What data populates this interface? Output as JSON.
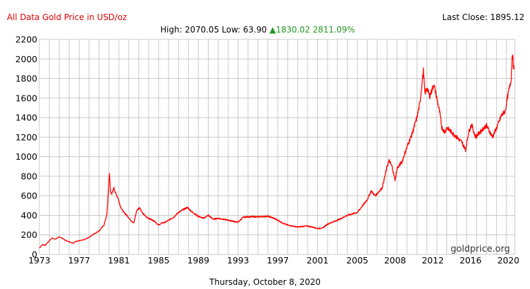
{
  "header": {
    "title": "All Data Gold Price in USD/oz",
    "last_close_label": "Last Close:",
    "last_close_value": "1895.12",
    "high_label": "High:",
    "high_value": "2070.05",
    "low_label": "Low:",
    "low_value": "63.90",
    "change_arrow": "▲",
    "change_value": "1830.02",
    "change_percent": "2811.09%"
  },
  "footer": {
    "date": "Thursday, October 8, 2020",
    "watermark": "goldprice.org"
  },
  "colors": {
    "title": "#dd0000",
    "line": "#ff0000",
    "change": "#229922",
    "grid": "#c8c8c8"
  },
  "chart_data": {
    "type": "line",
    "title": "All Data Gold Price in USD/oz",
    "xlabel": "",
    "ylabel": "",
    "ylim": [
      0,
      2200
    ],
    "xlim": [
      1973.0,
      2020.85
    ],
    "grid": true,
    "x_ticks": [
      "1973",
      "1977",
      "1981",
      "1985",
      "1989",
      "1993",
      "1997",
      "2001",
      "2005",
      "2008",
      "2012",
      "2016",
      "2020"
    ],
    "x_tick_values": [
      1973,
      1977,
      1981,
      1985,
      1989,
      1993,
      1997,
      2001,
      2005,
      2008.8,
      2012.6,
      2016.4,
      2020.2
    ],
    "y_ticks": [
      0,
      200,
      400,
      600,
      800,
      1000,
      1200,
      1400,
      1600,
      1800,
      2000,
      2200
    ],
    "series": [
      {
        "name": "",
        "x": [
          1973.0,
          1973.3,
          1973.6,
          1974.0,
          1974.3,
          1974.6,
          1975.0,
          1975.3,
          1975.7,
          1976.0,
          1976.4,
          1976.7,
          1977.0,
          1977.5,
          1978.0,
          1978.5,
          1979.0,
          1979.5,
          1979.8,
          1980.05,
          1980.15,
          1980.3,
          1980.5,
          1980.7,
          1980.9,
          1981.2,
          1981.5,
          1981.8,
          1982.2,
          1982.5,
          1982.8,
          1983.1,
          1983.4,
          1983.8,
          1984.2,
          1984.6,
          1985.0,
          1985.3,
          1985.7,
          1986.0,
          1986.5,
          1987.0,
          1987.5,
          1987.9,
          1988.3,
          1988.7,
          1989.0,
          1989.5,
          1990.0,
          1990.5,
          1991.0,
          1991.5,
          1992.0,
          1992.5,
          1993.0,
          1993.5,
          1994.0,
          1995.0,
          1996.0,
          1996.5,
          1997.0,
          1997.5,
          1998.0,
          1999.0,
          1999.7,
          2000.0,
          2000.5,
          2001.0,
          2001.5,
          2002.0,
          2003.0,
          2004.0,
          2005.0,
          2006.0,
          2006.4,
          2006.8,
          2007.5,
          2008.0,
          2008.2,
          2008.5,
          2008.8,
          2009.0,
          2009.5,
          2010.0,
          2010.5,
          2011.0,
          2011.3,
          2011.65,
          2011.8,
          2012.0,
          2012.3,
          2012.7,
          2013.0,
          2013.3,
          2013.5,
          2013.8,
          2014.0,
          2014.5,
          2015.0,
          2015.5,
          2015.9,
          2016.2,
          2016.5,
          2016.9,
          2017.5,
          2018.0,
          2018.6,
          2019.0,
          2019.5,
          2019.9,
          2020.1,
          2020.3,
          2020.5,
          2020.6,
          2020.7,
          2020.77
        ],
        "values": [
          65,
          100,
          95,
          140,
          170,
          155,
          180,
          165,
          140,
          130,
          115,
          135,
          140,
          150,
          175,
          210,
          240,
          300,
          410,
          840,
          640,
          620,
          680,
          620,
          580,
          480,
          430,
          400,
          350,
          320,
          450,
          480,
          420,
          380,
          360,
          340,
          300,
          320,
          330,
          350,
          380,
          430,
          460,
          480,
          440,
          410,
          390,
          370,
          400,
          360,
          370,
          360,
          350,
          340,
          330,
          380,
          385,
          385,
          390,
          375,
          350,
          320,
          300,
          280,
          290,
          290,
          280,
          265,
          270,
          310,
          350,
          400,
          430,
          560,
          650,
          600,
          680,
          900,
          960,
          900,
          760,
          880,
          950,
          1100,
          1230,
          1400,
          1550,
          1880,
          1650,
          1700,
          1620,
          1740,
          1600,
          1450,
          1300,
          1250,
          1300,
          1250,
          1200,
          1150,
          1070,
          1250,
          1330,
          1200,
          1270,
          1320,
          1200,
          1290,
          1420,
          1470,
          1600,
          1700,
          1800,
          2070,
          1950,
          1895
        ]
      }
    ]
  }
}
